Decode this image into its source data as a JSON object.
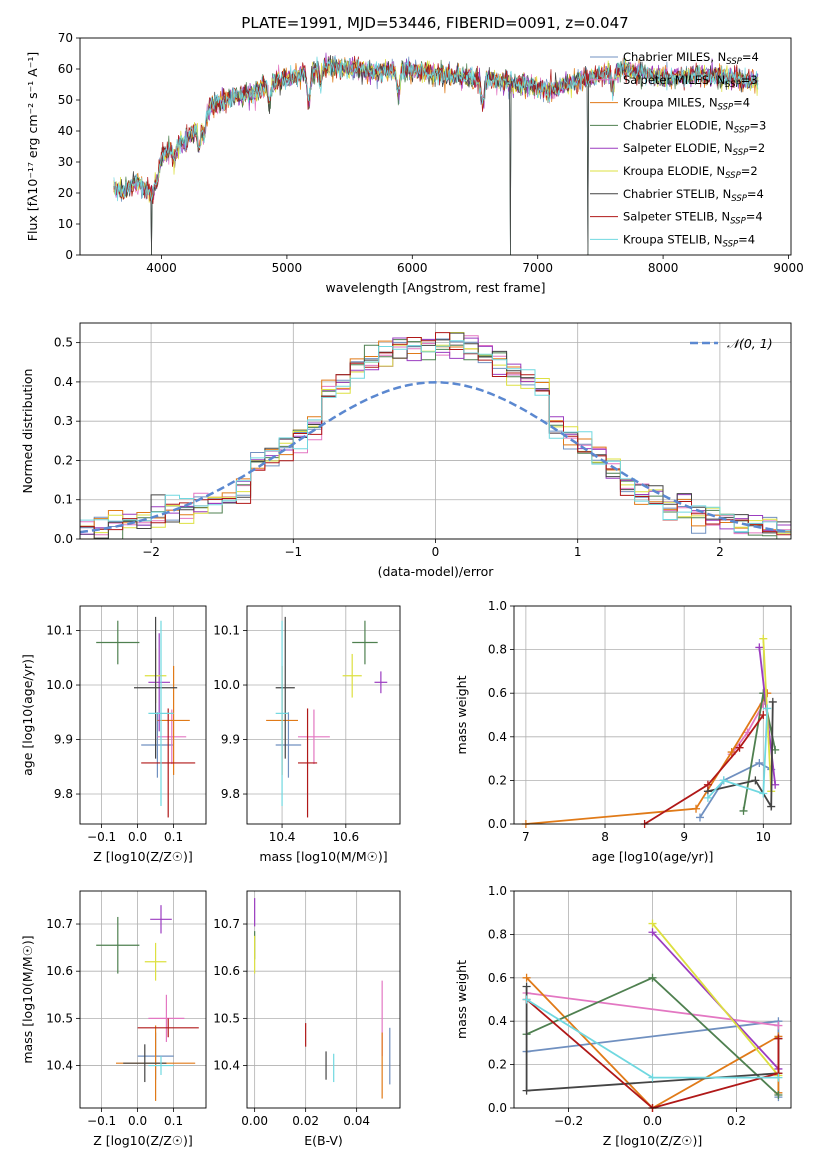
{
  "figure_title": "PLATE=1991, MJD=53446, FIBERID=0091, z=0.047",
  "colors": {
    "Chabrier MILES": "#7090c0",
    "Salpeter MILES": "#e377c2",
    "Kroupa MILES": "#e07a18",
    "Chabrier ELODIE": "#4f8050",
    "Salpeter ELODIE": "#9b3cc0",
    "Kroupa ELODIE": "#dde040",
    "Chabrier STELIB": "#444444",
    "Salpeter STELIB": "#b01818",
    "Kroupa STELIB": "#70d8e0",
    "normal_curve": "#5b88d0"
  },
  "chart_data": [
    {
      "id": "spectrum",
      "type": "line",
      "xlabel": "wavelength [Angstrom, rest frame]",
      "ylabel": "Flux [fλ10⁻¹⁷ erg cm⁻² s⁻¹ A⁻¹]",
      "xlim": [
        3350,
        9020
      ],
      "ylim": [
        0,
        70
      ],
      "xticks": [
        4000,
        5000,
        6000,
        7000,
        8000,
        9000
      ],
      "yticks": [
        0,
        10,
        20,
        30,
        40,
        50,
        60,
        70
      ],
      "legend": [
        "Chabrier MILES, N_SSP=4",
        "Salpeter MILES, N_SSP=3",
        "Kroupa MILES, N_SSP=4",
        "Chabrier ELODIE, N_SSP=3",
        "Salpeter ELODIE, N_SSP=2",
        "Kroupa ELODIE, N_SSP=2",
        "Chabrier STELIB, N_SSP=4",
        "Salpeter STELIB, N_SSP=4",
        "Kroupa STELIB, N_SSP=4"
      ],
      "legend_placement": "upper right",
      "continuum": [
        [
          3620,
          22
        ],
        [
          3700,
          20
        ],
        [
          3800,
          24
        ],
        [
          3900,
          20
        ],
        [
          3950,
          28
        ],
        [
          4000,
          32
        ],
        [
          4100,
          35
        ],
        [
          4200,
          37
        ],
        [
          4300,
          42
        ],
        [
          4400,
          48
        ],
        [
          4500,
          50
        ],
        [
          4700,
          52
        ],
        [
          4900,
          56
        ],
        [
          5100,
          58
        ],
        [
          5300,
          61
        ],
        [
          5500,
          60
        ],
        [
          5700,
          59
        ],
        [
          5900,
          60
        ],
        [
          6100,
          59
        ],
        [
          6300,
          58
        ],
        [
          6500,
          57
        ],
        [
          6700,
          56
        ],
        [
          6900,
          55
        ],
        [
          7100,
          53
        ],
        [
          7300,
          56
        ],
        [
          7500,
          58
        ],
        [
          7700,
          60
        ],
        [
          8000,
          57
        ],
        [
          8300,
          58
        ],
        [
          8600,
          57
        ],
        [
          8760,
          56
        ]
      ],
      "absorption_lines": [
        [
          3933,
          6
        ],
        [
          3968,
          6
        ],
        [
          4101,
          5
        ],
        [
          4300,
          8
        ],
        [
          4340,
          6
        ],
        [
          4861,
          6
        ],
        [
          5175,
          10
        ],
        [
          5270,
          5
        ],
        [
          5890,
          8
        ],
        [
          6563,
          8
        ],
        [
          7600,
          5
        ]
      ],
      "spikes": [
        {
          "x": 3920,
          "to": 0
        },
        {
          "x": 6780,
          "to": 0
        },
        {
          "x": 7400,
          "to": 0
        }
      ],
      "grid": false
    },
    {
      "id": "residual_hist",
      "type": "bar",
      "xlabel": "(data-model)/error",
      "ylabel": "Normed distribution",
      "xlim": [
        -2.5,
        2.5
      ],
      "ylim": [
        0,
        0.55
      ],
      "xticks": [
        -2,
        -1,
        0,
        1,
        2
      ],
      "yticks": [
        0.0,
        0.1,
        0.2,
        0.3,
        0.4,
        0.5
      ],
      "bin_width": 0.1,
      "legend": [
        "𝒩(0, 1)"
      ],
      "legend_placement": "upper right",
      "grid": true
    },
    {
      "id": "age_vs_Z",
      "type": "scatter",
      "xlabel": "Z [log10(Z/Z☉)]",
      "ylabel": "age  [log10(age/yr)]",
      "xlim": [
        -0.16,
        0.19
      ],
      "ylim": [
        9.745,
        10.145
      ],
      "xticks": [
        -0.1,
        0.0,
        0.1
      ],
      "yticks": [
        9.8,
        9.9,
        10.0,
        10.1
      ],
      "points": [
        {
          "model": "Chabrier MILES",
          "x": 0.055,
          "y": 9.89,
          "xerr": 0.045,
          "yerr": 0.06
        },
        {
          "model": "Salpeter MILES",
          "x": 0.095,
          "y": 9.905,
          "xerr": 0.04,
          "yerr": 0.05
        },
        {
          "model": "Kroupa MILES",
          "x": 0.1,
          "y": 9.935,
          "xerr": 0.045,
          "yerr": 0.1
        },
        {
          "model": "Chabrier ELODIE",
          "x": -0.055,
          "y": 10.078,
          "xerr": 0.06,
          "yerr": 0.04
        },
        {
          "model": "Salpeter ELODIE",
          "x": 0.06,
          "y": 10.005,
          "xerr": 0.03,
          "yerr": 0.09
        },
        {
          "model": "Kroupa ELODIE",
          "x": 0.05,
          "y": 10.017,
          "xerr": 0.03,
          "yerr": 0.05
        },
        {
          "model": "Chabrier STELIB",
          "x": 0.05,
          "y": 9.995,
          "xerr": 0.06,
          "yerr": 0.13
        },
        {
          "model": "Salpeter STELIB",
          "x": 0.085,
          "y": 9.857,
          "xerr": 0.075,
          "yerr": 0.1
        },
        {
          "model": "Kroupa STELIB",
          "x": 0.065,
          "y": 9.948,
          "xerr": 0.035,
          "yerr": 0.17
        }
      ],
      "grid": true
    },
    {
      "id": "age_vs_mass",
      "type": "scatter",
      "xlabel": "mass [log10(M/M☉)]",
      "ylabel": "",
      "xlim": [
        10.29,
        10.77
      ],
      "ylim": [
        9.745,
        10.145
      ],
      "xticks": [
        10.4,
        10.6
      ],
      "yticks": [
        9.8,
        9.9,
        10.0,
        10.1
      ],
      "points": [
        {
          "model": "Chabrier MILES",
          "x": 10.42,
          "y": 9.89,
          "xerr": 0.04,
          "yerr": 0.06
        },
        {
          "model": "Salpeter MILES",
          "x": 10.5,
          "y": 9.905,
          "xerr": 0.05,
          "yerr": 0.05
        },
        {
          "model": "Kroupa MILES",
          "x": 10.4,
          "y": 9.935,
          "xerr": 0.05,
          "yerr": 0.1
        },
        {
          "model": "Chabrier ELODIE",
          "x": 10.66,
          "y": 10.078,
          "xerr": 0.04,
          "yerr": 0.04
        },
        {
          "model": "Salpeter ELODIE",
          "x": 10.71,
          "y": 10.005,
          "xerr": 0.02,
          "yerr": 0.02
        },
        {
          "model": "Kroupa ELODIE",
          "x": 10.62,
          "y": 10.017,
          "xerr": 0.03,
          "yerr": 0.04
        },
        {
          "model": "Chabrier STELIB",
          "x": 10.41,
          "y": 9.995,
          "xerr": 0.03,
          "yerr": 0.13
        },
        {
          "model": "Salpeter STELIB",
          "x": 10.48,
          "y": 9.857,
          "xerr": 0.03,
          "yerr": 0.1
        },
        {
          "model": "Kroupa STELIB",
          "x": 10.4,
          "y": 9.948,
          "xerr": 0.02,
          "yerr": 0.17
        }
      ],
      "grid": true
    },
    {
      "id": "massweight_vs_age",
      "type": "line",
      "xlabel": "age  [log10(age/yr)]",
      "ylabel": "mass weight",
      "xlim": [
        6.85,
        10.35
      ],
      "ylim": [
        0,
        1
      ],
      "xticks": [
        7,
        8,
        9,
        10
      ],
      "yticks": [
        0.0,
        0.2,
        0.4,
        0.6,
        0.8,
        1.0
      ],
      "series": [
        {
          "model": "Chabrier MILES",
          "x": [
            9.2,
            9.5,
            9.95,
            10.1
          ],
          "y": [
            0.03,
            0.2,
            0.28,
            0.25
          ]
        },
        {
          "model": "Salpeter MILES",
          "x": [
            9.6,
            9.8,
            10.0
          ],
          "y": [
            0.32,
            0.42,
            0.55
          ]
        },
        {
          "model": "Kroupa MILES",
          "x": [
            7.0,
            9.15,
            9.6,
            10.05
          ],
          "y": [
            0.0,
            0.07,
            0.33,
            0.6
          ]
        },
        {
          "model": "Chabrier ELODIE",
          "x": [
            9.75,
            10.0,
            10.15
          ],
          "y": [
            0.06,
            0.6,
            0.34
          ]
        },
        {
          "model": "Salpeter ELODIE",
          "x": [
            9.95,
            10.15
          ],
          "y": [
            0.81,
            0.18
          ]
        },
        {
          "model": "Kroupa ELODIE",
          "x": [
            10.0,
            10.1
          ],
          "y": [
            0.85,
            0.15
          ]
        },
        {
          "model": "Chabrier STELIB",
          "x": [
            9.3,
            9.9,
            10.1,
            10.12
          ],
          "y": [
            0.15,
            0.2,
            0.08,
            0.56
          ]
        },
        {
          "model": "Salpeter STELIB",
          "x": [
            8.5,
            9.3,
            9.7,
            10.0
          ],
          "y": [
            0.0,
            0.18,
            0.35,
            0.5
          ]
        },
        {
          "model": "Kroupa STELIB",
          "x": [
            9.3,
            9.5,
            10.0,
            10.05
          ],
          "y": [
            0.12,
            0.2,
            0.14,
            0.53
          ]
        }
      ],
      "grid": true
    },
    {
      "id": "mass_vs_Z",
      "type": "scatter",
      "xlabel": "Z [log10(Z/Z☉)]",
      "ylabel": "mass [log10(M/M☉)]",
      "xlim": [
        -0.16,
        0.19
      ],
      "ylim": [
        10.31,
        10.77
      ],
      "xticks": [
        -0.1,
        0.0,
        0.1
      ],
      "yticks": [
        10.4,
        10.5,
        10.6,
        10.7
      ],
      "points": [
        {
          "model": "Chabrier MILES",
          "x": 0.05,
          "y": 10.42,
          "xerr": 0.05,
          "yerr": 0.05
        },
        {
          "model": "Salpeter MILES",
          "x": 0.08,
          "y": 10.5,
          "xerr": 0.05,
          "yerr": 0.05
        },
        {
          "model": "Kroupa MILES",
          "x": 0.05,
          "y": 10.405,
          "xerr": 0.11,
          "yerr": 0.08
        },
        {
          "model": "Chabrier ELODIE",
          "x": -0.055,
          "y": 10.655,
          "xerr": 0.06,
          "yerr": 0.06
        },
        {
          "model": "Salpeter ELODIE",
          "x": 0.065,
          "y": 10.71,
          "xerr": 0.03,
          "yerr": 0.03
        },
        {
          "model": "Kroupa ELODIE",
          "x": 0.05,
          "y": 10.62,
          "xerr": 0.03,
          "yerr": 0.04
        },
        {
          "model": "Chabrier STELIB",
          "x": 0.02,
          "y": 10.405,
          "xerr": 0.06,
          "yerr": 0.04
        },
        {
          "model": "Salpeter STELIB",
          "x": 0.085,
          "y": 10.48,
          "xerr": 0.085,
          "yerr": 0.02
        },
        {
          "model": "Kroupa STELIB",
          "x": 0.065,
          "y": 10.4,
          "xerr": 0.035,
          "yerr": 0.02
        }
      ],
      "grid": true
    },
    {
      "id": "mass_vs_ebv",
      "type": "scatter",
      "xlabel": "E(B-V)",
      "ylabel": "",
      "xlim": [
        -0.003,
        0.057
      ],
      "ylim": [
        10.31,
        10.77
      ],
      "xticks": [
        0.0,
        0.02,
        0.04
      ],
      "yticks": [
        10.4,
        10.5,
        10.6,
        10.7
      ],
      "points": [
        {
          "model": "Chabrier MILES",
          "x": 0.053,
          "y": 10.42,
          "xerr": 0,
          "yerr": 0.06
        },
        {
          "model": "Salpeter MILES",
          "x": 0.05,
          "y": 10.5,
          "xerr": 0,
          "yerr": 0.08
        },
        {
          "model": "Kroupa MILES",
          "x": 0.05,
          "y": 10.4,
          "xerr": 0,
          "yerr": 0.07
        },
        {
          "model": "Chabrier ELODIE",
          "x": 0.0,
          "y": 10.655,
          "xerr": 0,
          "yerr": 0.03
        },
        {
          "model": "Salpeter ELODIE",
          "x": 0.0,
          "y": 10.725,
          "xerr": 0,
          "yerr": 0.03
        },
        {
          "model": "Kroupa ELODIE",
          "x": 0.0,
          "y": 10.635,
          "xerr": 0,
          "yerr": 0.04
        },
        {
          "model": "Chabrier STELIB",
          "x": 0.028,
          "y": 10.4,
          "xerr": 0,
          "yerr": 0.03
        },
        {
          "model": "Salpeter STELIB",
          "x": 0.02,
          "y": 10.465,
          "xerr": 0,
          "yerr": 0.025
        },
        {
          "model": "Kroupa STELIB",
          "x": 0.031,
          "y": 10.395,
          "xerr": 0,
          "yerr": 0.03
        }
      ],
      "grid": true
    },
    {
      "id": "massweight_vs_Z",
      "type": "line",
      "xlabel": "Z [log10(Z/Z☉)]",
      "ylabel": "mass weight",
      "xlim": [
        -0.33,
        0.33
      ],
      "ylim": [
        0,
        1
      ],
      "xticks": [
        -0.2,
        0.0,
        0.2
      ],
      "yticks": [
        0.0,
        0.2,
        0.4,
        0.6,
        0.8,
        1.0
      ],
      "series": [
        {
          "model": "Chabrier MILES",
          "x": [
            -0.3,
            0.3,
            0.3
          ],
          "y": [
            0.26,
            0.4,
            0.05
          ]
        },
        {
          "model": "Salpeter MILES",
          "x": [
            -0.3,
            0.3
          ],
          "y": [
            0.53,
            0.38
          ]
        },
        {
          "model": "Kroupa MILES",
          "x": [
            -0.3,
            0.0,
            0.3,
            0.3
          ],
          "y": [
            0.6,
            0.0,
            0.33,
            0.07
          ]
        },
        {
          "model": "Chabrier ELODIE",
          "x": [
            -0.3,
            0.0,
            0.3
          ],
          "y": [
            0.34,
            0.6,
            0.06
          ]
        },
        {
          "model": "Salpeter ELODIE",
          "x": [
            0.0,
            0.3
          ],
          "y": [
            0.81,
            0.18
          ]
        },
        {
          "model": "Kroupa ELODIE",
          "x": [
            0.0,
            0.3
          ],
          "y": [
            0.85,
            0.15
          ]
        },
        {
          "model": "Chabrier STELIB",
          "x": [
            -0.3,
            -0.3,
            0.3,
            0.3
          ],
          "y": [
            0.56,
            0.08,
            0.16,
            0.32
          ]
        },
        {
          "model": "Salpeter STELIB",
          "x": [
            -0.3,
            0.0,
            0.3,
            0.3
          ],
          "y": [
            0.5,
            0.0,
            0.16,
            0.32
          ]
        },
        {
          "model": "Kroupa STELIB",
          "x": [
            -0.3,
            0.0,
            0.3
          ],
          "y": [
            0.5,
            0.14,
            0.14
          ]
        }
      ],
      "grid": true
    }
  ]
}
